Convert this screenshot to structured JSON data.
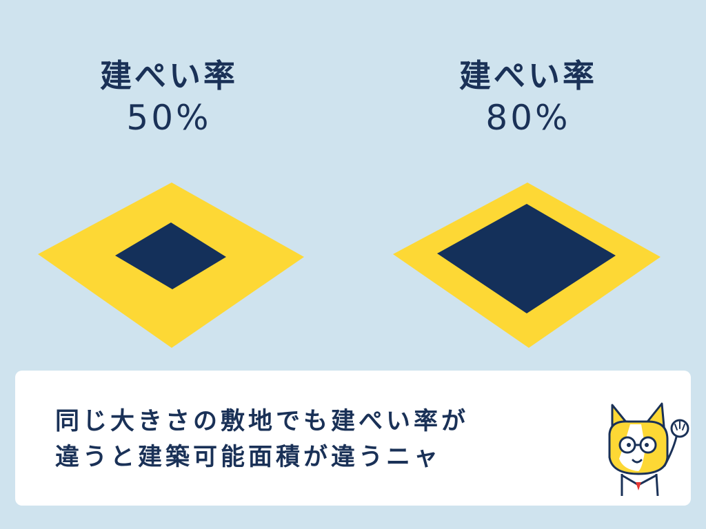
{
  "colors": {
    "background": "#cfe3ee",
    "lot": "#fdd835",
    "building": "#14305a",
    "text": "#1a3157",
    "caption_bg": "#ffffff"
  },
  "diagrams": [
    {
      "title": "建ぺい率",
      "value": "50%",
      "ratio": 0.5
    },
    {
      "title": "建ぺい率",
      "value": "80%",
      "ratio": 0.8
    }
  ],
  "caption": {
    "line1": "同じ大きさの敷地でも建ぺい率が",
    "line2": "違うと建築可能面積が違うニャ"
  },
  "icons": {
    "mascot": "cat-mascot-icon"
  }
}
